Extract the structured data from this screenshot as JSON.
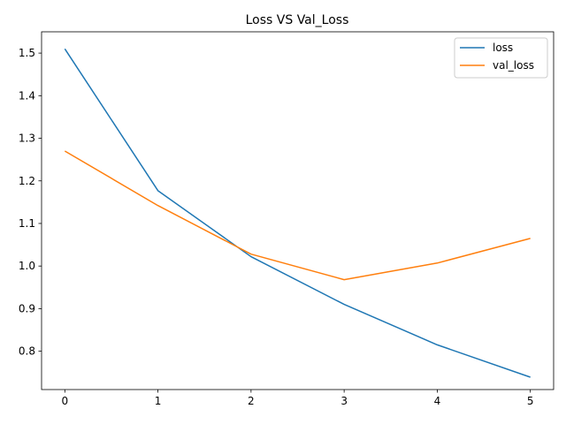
{
  "chart_data": {
    "type": "line",
    "title": "Loss VS Val_Loss",
    "xlabel": "",
    "ylabel": "",
    "x": [
      0,
      1,
      2,
      3,
      4,
      5
    ],
    "xlim": [
      -0.25,
      5.25
    ],
    "ylim": [
      0.71,
      1.55
    ],
    "xticks": [
      0,
      1,
      2,
      3,
      4,
      5
    ],
    "yticks": [
      0.8,
      0.9,
      1.0,
      1.1,
      1.2,
      1.3,
      1.4,
      1.5
    ],
    "ytick_labels": [
      "0.8",
      "0.9",
      "1.0",
      "1.1",
      "1.2",
      "1.3",
      "1.4",
      "1.5"
    ],
    "grid": false,
    "legend_position": "top-right",
    "series": [
      {
        "name": "loss",
        "color": "#1f77b4",
        "values": [
          1.51,
          1.177,
          1.022,
          0.91,
          0.815,
          0.739
        ]
      },
      {
        "name": "val_loss",
        "color": "#ff7f0e",
        "values": [
          1.27,
          1.142,
          1.028,
          0.968,
          1.007,
          1.065
        ]
      }
    ]
  }
}
